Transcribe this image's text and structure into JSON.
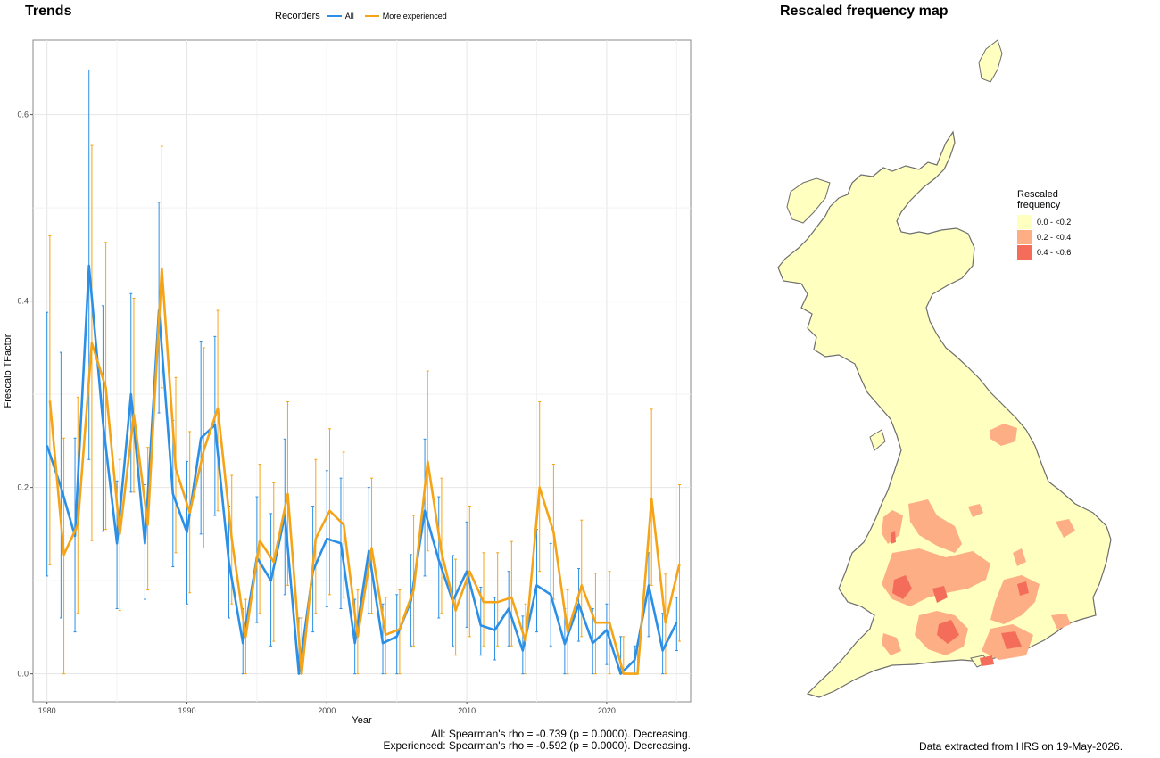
{
  "left_panel": {
    "title": "Trends",
    "legend_title": "Recorders",
    "caption_lines": [
      "All: Spearman's rho = -0.739 (p = 0.0000). Decreasing.",
      "Experienced: Spearman's rho = -0.592 (p = 0.0000). Decreasing."
    ]
  },
  "right_panel": {
    "title": "Rescaled frequency map",
    "legend_title_line1": "Rescaled",
    "legend_title_line2": "frequency",
    "legend_items": [
      {
        "label": "0.0 - <0.2",
        "color": "#ffffbf"
      },
      {
        "label": "0.2 - <0.4",
        "color": "#fdae85"
      },
      {
        "label": "0.4 - <0.6",
        "color": "#f46d5a"
      }
    ],
    "footer": "Data extracted from HRS on 19-May-2026."
  },
  "chart_data": {
    "type": "line",
    "xlabel": "Year",
    "ylabel": "Frescalo TFactor",
    "xlim": [
      1979,
      2026
    ],
    "ylim": [
      -0.03,
      0.68
    ],
    "xticks": [
      1980,
      1990,
      2000,
      2010,
      2020
    ],
    "yticks": [
      0.0,
      0.2,
      0.4,
      0.6
    ],
    "ytick_labels": [
      "0.0",
      "0.2",
      "0.4",
      "0.6"
    ],
    "grid": true,
    "legend_position": "top",
    "series": [
      {
        "name": "All",
        "color": "#2b8fe6",
        "points": [
          [
            1980,
            0.245,
            0.105,
            0.388
          ],
          [
            1981,
            0.2,
            0.06,
            0.345
          ],
          [
            1982,
            0.148,
            0.045,
            0.253
          ],
          [
            1983,
            0.438,
            0.23,
            0.648
          ],
          [
            1984,
            0.27,
            0.153,
            0.395
          ],
          [
            1985,
            0.14,
            0.07,
            0.207
          ],
          [
            1986,
            0.3,
            0.195,
            0.408
          ],
          [
            1987,
            0.14,
            0.08,
            0.203
          ],
          [
            1988,
            0.39,
            0.28,
            0.506
          ],
          [
            1989,
            0.193,
            0.115,
            0.272
          ],
          [
            1990,
            0.152,
            0.075,
            0.228
          ],
          [
            1991,
            0.253,
            0.15,
            0.357
          ],
          [
            1992,
            0.267,
            0.17,
            0.362
          ],
          [
            1993,
            0.12,
            0.06,
            0.18
          ],
          [
            1994,
            0.033,
            0.0,
            0.07
          ],
          [
            1995,
            0.125,
            0.055,
            0.19
          ],
          [
            1996,
            0.1,
            0.03,
            0.172
          ],
          [
            1997,
            0.17,
            0.085,
            0.252
          ],
          [
            1998,
            0.0,
            0.0,
            0.06
          ],
          [
            1999,
            0.11,
            0.045,
            0.18
          ],
          [
            2000,
            0.145,
            0.072,
            0.218
          ],
          [
            2001,
            0.14,
            0.07,
            0.21
          ],
          [
            2002,
            0.033,
            0.0,
            0.08
          ],
          [
            2003,
            0.132,
            0.065,
            0.2
          ],
          [
            2004,
            0.033,
            0.0,
            0.075
          ],
          [
            2005,
            0.04,
            0.0,
            0.085
          ],
          [
            2006,
            0.078,
            0.03,
            0.128
          ],
          [
            2007,
            0.175,
            0.105,
            0.252
          ],
          [
            2008,
            0.122,
            0.06,
            0.19
          ],
          [
            2009,
            0.078,
            0.03,
            0.127
          ],
          [
            2010,
            0.11,
            0.05,
            0.163
          ],
          [
            2011,
            0.052,
            0.02,
            0.093
          ],
          [
            2012,
            0.047,
            0.015,
            0.082
          ],
          [
            2013,
            0.07,
            0.03,
            0.11
          ],
          [
            2014,
            0.025,
            0.0,
            0.062
          ],
          [
            2015,
            0.095,
            0.045,
            0.155
          ],
          [
            2016,
            0.085,
            0.03,
            0.14
          ],
          [
            2017,
            0.032,
            0.0,
            0.07
          ],
          [
            2018,
            0.075,
            0.035,
            0.113
          ],
          [
            2019,
            0.033,
            0.0,
            0.07
          ],
          [
            2020,
            0.047,
            0.01,
            0.075
          ],
          [
            2021,
            0.0,
            0.0,
            0.04
          ],
          [
            2022,
            0.015,
            0.0,
            0.03
          ],
          [
            2023,
            0.095,
            0.04,
            0.13
          ],
          [
            2024,
            0.025,
            0.0,
            0.065
          ],
          [
            2025,
            0.055,
            0.025,
            0.082
          ]
        ]
      },
      {
        "name": "More experienced",
        "color": "#f5a418",
        "points": [
          [
            1980,
            0.293,
            0.117,
            0.47
          ],
          [
            1981,
            0.128,
            0.0,
            0.253
          ],
          [
            1982,
            0.16,
            0.065,
            0.297
          ],
          [
            1983,
            0.355,
            0.143,
            0.567
          ],
          [
            1984,
            0.307,
            0.155,
            0.463
          ],
          [
            1985,
            0.15,
            0.068,
            0.23
          ],
          [
            1986,
            0.278,
            0.195,
            0.403
          ],
          [
            1987,
            0.16,
            0.09,
            0.243
          ],
          [
            1988,
            0.435,
            0.307,
            0.566
          ],
          [
            1989,
            0.22,
            0.13,
            0.318
          ],
          [
            1990,
            0.173,
            0.087,
            0.26
          ],
          [
            1991,
            0.24,
            0.135,
            0.35
          ],
          [
            1992,
            0.285,
            0.175,
            0.39
          ],
          [
            1993,
            0.145,
            0.075,
            0.213
          ],
          [
            1994,
            0.04,
            0.0,
            0.08
          ],
          [
            1995,
            0.143,
            0.065,
            0.225
          ],
          [
            1996,
            0.12,
            0.035,
            0.205
          ],
          [
            1997,
            0.193,
            0.095,
            0.292
          ],
          [
            1998,
            0.0,
            0.0,
            0.06
          ],
          [
            1999,
            0.145,
            0.065,
            0.23
          ],
          [
            2000,
            0.175,
            0.085,
            0.263
          ],
          [
            2001,
            0.16,
            0.082,
            0.238
          ],
          [
            2002,
            0.04,
            0.0,
            0.09
          ],
          [
            2003,
            0.135,
            0.065,
            0.21
          ],
          [
            2004,
            0.042,
            0.0,
            0.082
          ],
          [
            2005,
            0.048,
            0.0,
            0.09
          ],
          [
            2006,
            0.09,
            0.03,
            0.17
          ],
          [
            2007,
            0.228,
            0.132,
            0.325
          ],
          [
            2008,
            0.13,
            0.065,
            0.21
          ],
          [
            2009,
            0.068,
            0.02,
            0.123
          ],
          [
            2010,
            0.11,
            0.04,
            0.18
          ],
          [
            2011,
            0.077,
            0.03,
            0.13
          ],
          [
            2012,
            0.077,
            0.03,
            0.13
          ],
          [
            2013,
            0.082,
            0.03,
            0.142
          ],
          [
            2014,
            0.035,
            0.0,
            0.075
          ],
          [
            2015,
            0.2,
            0.11,
            0.292
          ],
          [
            2016,
            0.152,
            0.08,
            0.225
          ],
          [
            2017,
            0.045,
            0.0,
            0.09
          ],
          [
            2018,
            0.095,
            0.04,
            0.165
          ],
          [
            2019,
            0.055,
            0.0,
            0.108
          ],
          [
            2020,
            0.055,
            0.0,
            0.11
          ],
          [
            2021,
            0.0,
            0.0,
            0.04
          ],
          [
            2022,
            0.0,
            0.0,
            0.03
          ],
          [
            2023,
            0.188,
            0.095,
            0.284
          ],
          [
            2024,
            0.055,
            0.0,
            0.107
          ],
          [
            2025,
            0.118,
            0.035,
            0.203
          ]
        ]
      }
    ]
  }
}
